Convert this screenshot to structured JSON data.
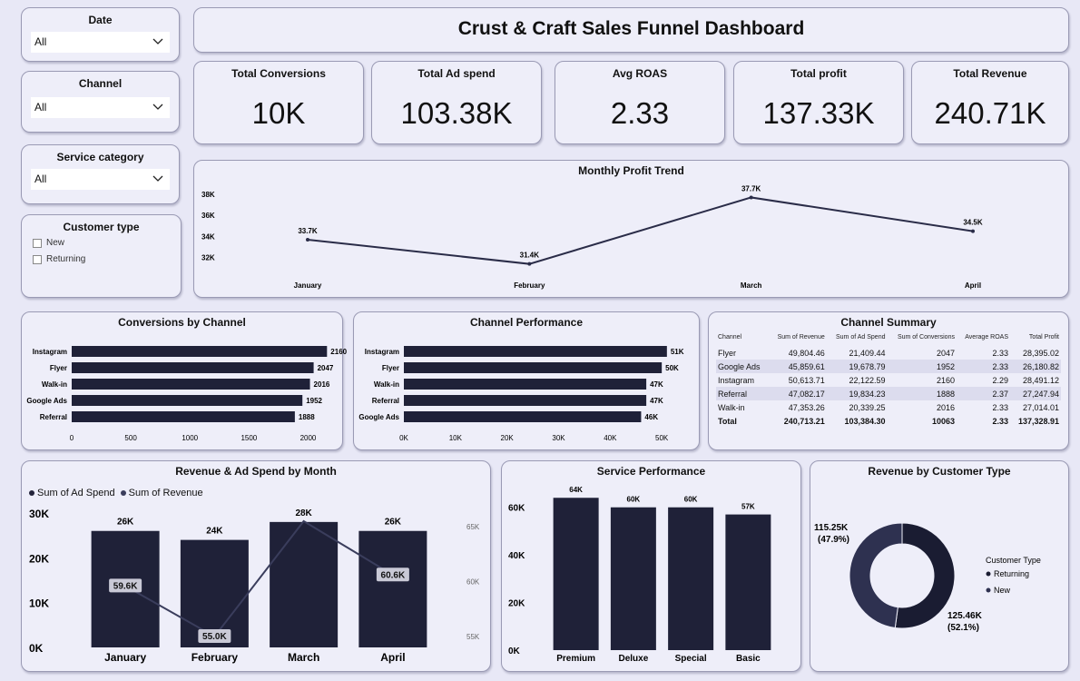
{
  "title": "Crust & Craft Sales Funnel Dashboard",
  "colors": {
    "bar": "#1f2138",
    "line": "#2a2c48",
    "panel": "#eeeef9",
    "donut_returning": "#1a1c32",
    "donut_new": "#2e3150"
  },
  "slicers": [
    {
      "label": "Date",
      "value": "All"
    },
    {
      "label": "Channel",
      "value": "All"
    },
    {
      "label": "Service category",
      "value": "All"
    }
  ],
  "customer_slicer": {
    "label": "Customer type",
    "options": [
      "New",
      "Returning"
    ]
  },
  "kpis": [
    {
      "label": "Total Conversions",
      "value": "10K"
    },
    {
      "label": "Total Ad spend",
      "value": "103.38K"
    },
    {
      "label": "Avg ROAS",
      "value": "2.33"
    },
    {
      "label": "Total profit",
      "value": "137.33K"
    },
    {
      "label": "Total Revenue",
      "value": "240.71K"
    }
  ],
  "chart_data": [
    {
      "id": "profit_trend",
      "type": "line",
      "title": "Monthly Profit Trend",
      "x": [
        "January",
        "February",
        "March",
        "April"
      ],
      "values": [
        33.7,
        31.4,
        37.7,
        34.5
      ],
      "data_labels": [
        "33.7K",
        "31.4K",
        "37.7K",
        "34.5K"
      ],
      "yticks": [
        "32K",
        "34K",
        "36K",
        "38K"
      ],
      "yticks_values": [
        32,
        34,
        36,
        38
      ],
      "ylim": [
        31.2,
        38.6
      ]
    },
    {
      "id": "conversions_by_channel",
      "type": "bar",
      "orientation": "horizontal",
      "title": "Conversions by Channel",
      "categories": [
        "Instagram",
        "Flyer",
        "Walk-in",
        "Google Ads",
        "Referral"
      ],
      "values": [
        2160,
        2047,
        2016,
        1952,
        1888
      ],
      "data_labels": [
        "2160",
        "2047",
        "2016",
        "1952",
        "1888"
      ],
      "xticks": [
        "0",
        "500",
        "1000",
        "1500",
        "2000"
      ],
      "xticks_values": [
        0,
        500,
        1000,
        1500,
        2000
      ],
      "xlim": [
        0,
        2150
      ]
    },
    {
      "id": "channel_performance",
      "type": "bar",
      "orientation": "horizontal",
      "title": "Channel Performance",
      "categories": [
        "Instagram",
        "Flyer",
        "Walk-in",
        "Referral",
        "Google Ads"
      ],
      "values": [
        51,
        50,
        47,
        47,
        46
      ],
      "data_labels": [
        "51K",
        "50K",
        "47K",
        "47K",
        "46K"
      ],
      "xticks": [
        "0K",
        "10K",
        "20K",
        "30K",
        "40K",
        "50K"
      ],
      "xticks_values": [
        0,
        10,
        20,
        30,
        40,
        50
      ],
      "xlim": [
        0,
        50.5
      ]
    },
    {
      "id": "channel_summary",
      "type": "table",
      "title": "Channel Summary",
      "columns": [
        "Channel",
        "Sum of Revenue",
        "Sum of Ad Spend",
        "Sum of Conversions",
        "Average ROAS",
        "Total Profit"
      ],
      "rows": [
        [
          "Flyer",
          "49,804.46",
          "21,409.44",
          "2047",
          "2.33",
          "28,395.02"
        ],
        [
          "Google Ads",
          "45,859.61",
          "19,678.79",
          "1952",
          "2.33",
          "26,180.82"
        ],
        [
          "Instagram",
          "50,613.71",
          "22,122.59",
          "2160",
          "2.29",
          "28,491.12"
        ],
        [
          "Referral",
          "47,082.17",
          "19,834.23",
          "1888",
          "2.37",
          "27,247.94"
        ],
        [
          "Walk-in",
          "47,353.26",
          "20,339.25",
          "2016",
          "2.33",
          "27,014.01"
        ]
      ],
      "total": [
        "Total",
        "240,713.21",
        "103,384.30",
        "10063",
        "2.33",
        "137,328.91"
      ]
    },
    {
      "id": "revenue_adspend",
      "type": "bar",
      "title": "Revenue & Ad Spend by Month",
      "categories": [
        "January",
        "February",
        "March",
        "April"
      ],
      "series": [
        {
          "name": "Sum of Ad Spend",
          "type": "bar",
          "values": [
            26,
            24,
            28,
            26
          ],
          "data_labels": [
            "26K",
            "24K",
            "28K",
            "26K"
          ]
        },
        {
          "name": "Sum of Revenue",
          "type": "line",
          "values": [
            59.6,
            55.0,
            65.5,
            60.6
          ],
          "data_labels": [
            "59.6K",
            "55.0K",
            "",
            "60.6K"
          ]
        }
      ],
      "yticks": [
        "0K",
        "10K",
        "20K",
        "30K"
      ],
      "yticks_values": [
        0,
        10,
        20,
        30
      ],
      "ylim": [
        0,
        30
      ],
      "y2ticks": [
        "55K",
        "60K",
        "65K"
      ],
      "y2ticks_values": [
        55,
        60,
        65
      ],
      "legend_position": "top-left"
    },
    {
      "id": "service_performance",
      "type": "bar",
      "title": "Service Performance",
      "categories": [
        "Premium",
        "Deluxe",
        "Special",
        "Basic"
      ],
      "values": [
        64,
        60,
        60,
        57
      ],
      "data_labels": [
        "64K",
        "60K",
        "60K",
        "57K"
      ],
      "yticks": [
        "0K",
        "20K",
        "40K",
        "60K"
      ],
      "yticks_values": [
        0,
        20,
        40,
        60
      ],
      "ylim": [
        0,
        66
      ]
    },
    {
      "id": "revenue_customer_type",
      "type": "pie",
      "donut": true,
      "title": "Revenue by Customer Type",
      "legend_title": "Customer Type",
      "slices": [
        {
          "name": "Returning",
          "value": 125.46,
          "label": "125.46K",
          "pct": "(52.1%)"
        },
        {
          "name": "New",
          "value": 115.25,
          "label": "115.25K",
          "pct": "(47.9%)"
        }
      ],
      "legend_position": "right"
    }
  ]
}
